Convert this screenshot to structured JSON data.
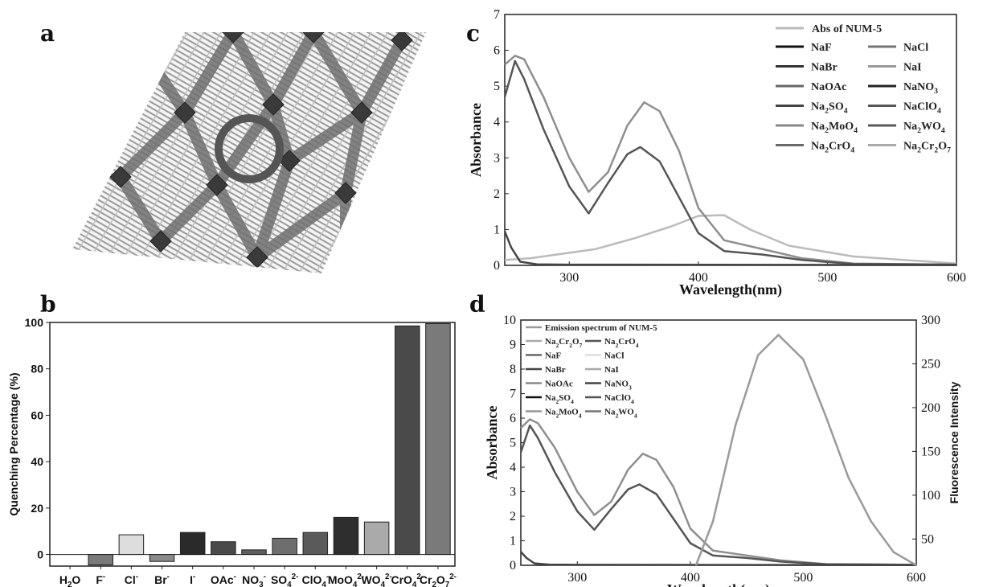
{
  "panels": {
    "a": "a",
    "b": "b",
    "c": "c",
    "d": "d"
  },
  "chart_data": [
    {
      "id": "b",
      "type": "bar",
      "ylabel": "Quenching Percentage (%)",
      "ylim": [
        -5,
        100
      ],
      "yticks": [
        "0",
        "20",
        "40",
        "60",
        "80",
        "100"
      ],
      "categories": [
        "H2O",
        "F-",
        "Cl-",
        "Br-",
        "I-",
        "OAc-",
        "NO3-",
        "SO4 2-",
        "ClO4-",
        "MoO4 2-",
        "WO4 2-",
        "CrO4 2-",
        "Cr2O7 2-"
      ],
      "category_labels": [
        {
          "base": "H",
          "sub": "2",
          "tail": "O",
          "sup": ""
        },
        {
          "base": "F",
          "sub": "",
          "tail": "",
          "sup": "-"
        },
        {
          "base": "Cl",
          "sub": "",
          "tail": "",
          "sup": "-"
        },
        {
          "base": "Br",
          "sub": "",
          "tail": "",
          "sup": "-"
        },
        {
          "base": "I",
          "sub": "",
          "tail": "",
          "sup": "-"
        },
        {
          "base": "OAc",
          "sub": "",
          "tail": "",
          "sup": "-"
        },
        {
          "base": "NO",
          "sub": "3",
          "tail": "",
          "sup": "-"
        },
        {
          "base": "SO",
          "sub": "4",
          "tail": "",
          "sup": "2-"
        },
        {
          "base": "ClO",
          "sub": "4",
          "tail": "",
          "sup": "-"
        },
        {
          "base": "MoO",
          "sub": "4",
          "tail": "",
          "sup": "2-"
        },
        {
          "base": "WO",
          "sub": "4",
          "tail": "",
          "sup": "2-"
        },
        {
          "base": "CrO",
          "sub": "4",
          "tail": "",
          "sup": "2-"
        },
        {
          "base": "Cr",
          "sub": "2",
          "tail": "O",
          "sup": "2-",
          "sub2": "7"
        }
      ],
      "values": [
        0,
        -4.5,
        8.5,
        -3,
        9.5,
        5.5,
        2,
        7,
        9.5,
        16,
        14,
        98.5,
        99.5
      ],
      "colors": [
        "#888888",
        "#7a7a7a",
        "#dddddd",
        "#8a8a8a",
        "#2a2a2a",
        "#4a4a4a",
        "#5e5e5e",
        "#6e6e6e",
        "#5a5a5a",
        "#2e2e2e",
        "#aaaaaa",
        "#4a4a4a",
        "#7a7a7a"
      ]
    },
    {
      "id": "c",
      "type": "line",
      "xlabel": "Wavelength(nm)",
      "ylabel": "Absorbance",
      "xlim": [
        250,
        600
      ],
      "ylim": [
        0,
        7
      ],
      "xticks": [
        "300",
        "400",
        "500",
        "600"
      ],
      "yticks": [
        "0",
        "1",
        "2",
        "3",
        "4",
        "5",
        "6",
        "7"
      ],
      "legend_title": "Abs of NUM-5",
      "legend": [
        {
          "base": "NaF"
        },
        {
          "base": "NaCl"
        },
        {
          "base": "NaBr"
        },
        {
          "base": "NaI"
        },
        {
          "base": "NaOAc"
        },
        {
          "base": "NaNO",
          "sub": "3"
        },
        {
          "base": "Na",
          "sub": "2",
          "tail": "SO",
          "sub2": "4"
        },
        {
          "base": "NaClO",
          "sub": "4"
        },
        {
          "base": "Na",
          "sub": "2",
          "tail": "MoO",
          "sub2": "4"
        },
        {
          "base": "Na",
          "sub": "2",
          "tail": "WO",
          "sub2": "4"
        },
        {
          "base": "Na",
          "sub": "2",
          "tail": "CrO",
          "sub2": "4"
        },
        {
          "base": "Na",
          "sub": "2",
          "tail": "Cr",
          "sub2": "2",
          "tail2": "O",
          "sub3": "7"
        }
      ],
      "legend_colors": [
        "#111111",
        "#777777",
        "#333333",
        "#999999",
        "#666666",
        "#222222",
        "#444444",
        "#555555",
        "#888888",
        "#5a5a5a",
        "#6a6a6a",
        "#aaaaaa"
      ],
      "series": [
        {
          "name": "Abs of NUM-5",
          "color": "#bbbbbb",
          "x": [
            250,
            270,
            290,
            320,
            350,
            380,
            400,
            420,
            440,
            470,
            520,
            600
          ],
          "y": [
            0.15,
            0.2,
            0.3,
            0.45,
            0.75,
            1.1,
            1.38,
            1.4,
            1.0,
            0.55,
            0.25,
            0.05
          ]
        },
        {
          "name": "Na2Cr2O7",
          "color": "#8e8e8e",
          "x": [
            250,
            258,
            265,
            280,
            300,
            315,
            330,
            345,
            358,
            370,
            385,
            400,
            420,
            450,
            480,
            520,
            600
          ],
          "y": [
            5.6,
            5.85,
            5.75,
            4.7,
            3.0,
            2.05,
            2.6,
            3.9,
            4.55,
            4.3,
            3.2,
            1.6,
            0.7,
            0.45,
            0.2,
            0.05,
            0.02
          ]
        },
        {
          "name": "Na2CrO4",
          "color": "#555555",
          "x": [
            250,
            258,
            265,
            280,
            300,
            315,
            330,
            345,
            355,
            370,
            385,
            400,
            420,
            450,
            480,
            520,
            600
          ],
          "y": [
            4.7,
            5.7,
            5.2,
            3.8,
            2.2,
            1.45,
            2.3,
            3.1,
            3.3,
            2.9,
            1.9,
            0.9,
            0.4,
            0.3,
            0.15,
            0.04,
            0.02
          ]
        },
        {
          "name": "NaF",
          "color": "#444444",
          "x": [
            250,
            255,
            262,
            275,
            300,
            600
          ],
          "y": [
            0.95,
            0.5,
            0.1,
            0.03,
            0.02,
            0.01
          ]
        }
      ]
    },
    {
      "id": "d",
      "type": "line",
      "xlabel": "Wavelength(nm)",
      "ylabel": "Absorbance",
      "ylabel_right": "Fluorescence Intensity",
      "xlim": [
        250,
        600
      ],
      "ylim": [
        0,
        10
      ],
      "ylim_right": [
        20,
        300
      ],
      "xticks": [
        "300",
        "400",
        "500",
        "600"
      ],
      "yticks": [
        "0",
        "1",
        "2",
        "3",
        "4",
        "5",
        "6",
        "7",
        "8",
        "9",
        "10"
      ],
      "yticks_right": [
        "50",
        "100",
        "150",
        "200",
        "250",
        "300"
      ],
      "legend": [
        {
          "base": "Emission spectrum of NUM-5",
          "full": true
        },
        {
          "base": "Na",
          "sub": "2",
          "tail": "Cr",
          "sub2": "2",
          "tail2": "O",
          "sub3": "7"
        },
        {
          "base": "Na",
          "sub": "2",
          "tail": "CrO",
          "sub2": "4"
        },
        {
          "base": "NaF"
        },
        {
          "base": "NaCl"
        },
        {
          "base": "NaBr"
        },
        {
          "base": "NaI"
        },
        {
          "base": "NaOAc"
        },
        {
          "base": "NaNO",
          "sub": "3"
        },
        {
          "base": "Na",
          "sub": "2",
          "tail": "SO",
          "sub2": "4"
        },
        {
          "base": "NaClO",
          "sub": "4"
        },
        {
          "base": "Na",
          "sub": "2",
          "tail": "MoO",
          "sub2": "4"
        },
        {
          "base": "Na",
          "sub": "2",
          "tail": "WO",
          "sub2": "4"
        }
      ],
      "legend_colors": [
        "#999999",
        "#aaaaaa",
        "#555555",
        "#666666",
        "#dddddd",
        "#444444",
        "#aaaaaa",
        "#888888",
        "#444444",
        "#111111",
        "#555555",
        "#999999",
        "#777777"
      ],
      "series": [
        {
          "name": "Na2Cr2O7",
          "color": "#8e8e8e",
          "axis": "left",
          "x": [
            250,
            258,
            265,
            280,
            300,
            315,
            330,
            345,
            358,
            370,
            385,
            400,
            420,
            450,
            480,
            520,
            600
          ],
          "y": [
            5.6,
            5.95,
            5.8,
            4.8,
            3.0,
            2.05,
            2.6,
            3.9,
            4.55,
            4.3,
            3.2,
            1.5,
            0.6,
            0.4,
            0.2,
            0.05,
            0.02
          ]
        },
        {
          "name": "Na2CrO4",
          "color": "#555555",
          "axis": "left",
          "x": [
            250,
            258,
            265,
            280,
            300,
            315,
            330,
            345,
            355,
            370,
            385,
            400,
            420,
            450,
            480,
            520,
            600
          ],
          "y": [
            4.6,
            5.7,
            5.2,
            3.8,
            2.2,
            1.45,
            2.3,
            3.1,
            3.3,
            2.9,
            1.9,
            0.9,
            0.4,
            0.3,
            0.15,
            0.04,
            0.02
          ]
        },
        {
          "name": "NaF",
          "color": "#444444",
          "axis": "left",
          "x": [
            250,
            255,
            262,
            275,
            300,
            600
          ],
          "y": [
            0.55,
            0.3,
            0.08,
            0.03,
            0.02,
            0.01
          ]
        },
        {
          "name": "Emission spectrum of NUM-5",
          "color": "#9a9a9a",
          "axis": "right",
          "x": [
            405,
            420,
            440,
            460,
            478,
            500,
            520,
            540,
            560,
            580,
            600
          ],
          "y": [
            20,
            70,
            180,
            260,
            283,
            255,
            190,
            120,
            70,
            35,
            20
          ]
        }
      ]
    }
  ]
}
